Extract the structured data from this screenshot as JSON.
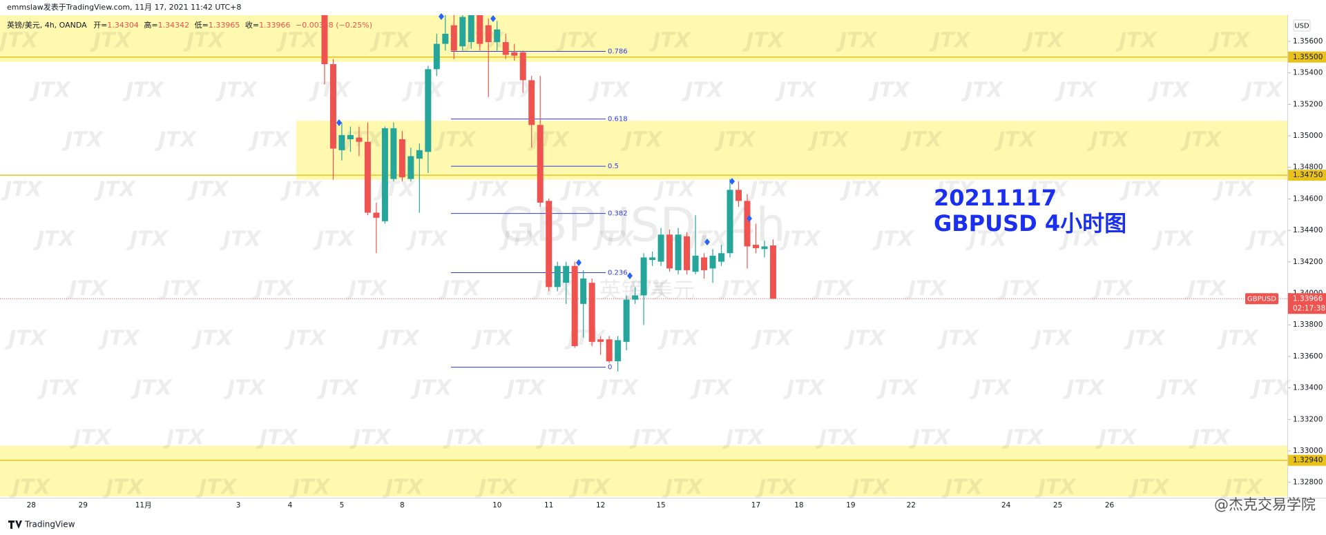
{
  "header": {
    "published": "emmslaw发表于TradingView.com, 11月 17, 2021 11:42 UTC+8",
    "symbol": "英镑/美元, 4h, OANDA",
    "open_label": "开=",
    "high_label": "高=",
    "low_label": "低=",
    "close_label": "收=",
    "change": "−0.00338 (−0.25%)"
  },
  "chart_data": {
    "type": "candlestick",
    "watermark": "GBPUSD, 4h",
    "watermark_sub": "英镑/美元",
    "brand_watermark": "JTX",
    "annotation": [
      "20211117",
      "GBPUSD 4小时图"
    ],
    "currency": "USD",
    "up_color": "#26a69a",
    "down_color": "#ef5350",
    "categories": [
      "28",
      null,
      null,
      null,
      null,
      null,
      "29",
      null,
      null,
      null,
      null,
      null,
      null,
      "11月",
      null,
      null,
      null,
      null,
      null,
      null,
      null,
      null,
      null,
      null,
      "3",
      null,
      null,
      null,
      null,
      null,
      "4",
      null,
      null,
      null,
      null,
      null,
      "5",
      null,
      null,
      null,
      null,
      null,
      null,
      "8",
      null,
      null,
      null,
      null,
      null,
      null,
      null,
      null,
      null,
      null,
      "10",
      null,
      null,
      null,
      null,
      null,
      "11",
      null,
      null,
      null,
      null,
      null,
      "12",
      null,
      null,
      null,
      null,
      null,
      null,
      "15",
      null,
      null,
      null,
      null,
      null,
      null,
      null,
      null,
      null,
      null,
      "17",
      null,
      null,
      null,
      null,
      "18",
      null,
      null,
      null,
      null,
      null,
      "19",
      null,
      null,
      null,
      null,
      null,
      null,
      "22",
      null,
      null,
      null,
      null,
      null,
      null,
      null,
      null,
      null,
      null,
      "24",
      null,
      null,
      null,
      null,
      null,
      "25",
      null,
      null,
      null,
      null,
      null,
      "26",
      null,
      null
    ],
    "open": [
      null,
      null,
      null,
      null,
      null,
      null,
      null,
      null,
      null,
      null,
      null,
      null,
      null,
      null,
      null,
      null,
      null,
      null,
      null,
      null,
      null,
      null,
      null,
      null,
      null,
      null,
      null,
      null,
      null,
      null,
      null,
      null,
      null,
      null,
      1.35766,
      1.35455,
      1.34909,
      1.34978,
      1.34989,
      1.34962,
      1.34512,
      1.34458,
      1.34726,
      1.34978,
      1.34726,
      1.34855,
      1.34898,
      1.35423,
      1.35584,
      1.35702,
      1.35568,
      1.35595,
      1.35766,
      1.35702,
      1.35595,
      1.35595,
      1.3553,
      1.3553,
      1.35353,
      1.35069,
      1.34587,
      1.3404,
      1.34067,
      1.34174,
      1.33933,
      1.34067,
      1.33708,
      1.33708,
      1.33569,
      1.33692,
      1.3396,
      1.33987,
      1.34212,
      1.34201,
      1.34373,
      1.34147,
      1.34362,
      1.34137,
      1.34228,
      1.34158,
      1.34201,
      1.34255,
      1.34657,
      1.34587,
      1.34308,
      1.34281,
      1.34304,
      null,
      null,
      null,
      null,
      null,
      null,
      null,
      null,
      null,
      null,
      null,
      null,
      null,
      null,
      null,
      null,
      null,
      null,
      null,
      null,
      null,
      null,
      null,
      null,
      null,
      null,
      null,
      null,
      null,
      null,
      null,
      null,
      null,
      null,
      null,
      null,
      null,
      null,
      null,
      null,
      null
    ],
    "high": [
      null,
      null,
      null,
      null,
      null,
      null,
      null,
      null,
      null,
      null,
      null,
      null,
      null,
      null,
      null,
      null,
      null,
      null,
      null,
      null,
      null,
      null,
      null,
      null,
      null,
      null,
      null,
      null,
      null,
      null,
      null,
      null,
      null,
      null,
      1.35766,
      1.35487,
      1.35085,
      1.35059,
      1.35059,
      1.35085,
      1.34576,
      1.35059,
      1.35085,
      1.35032,
      1.34925,
      1.34951,
      1.35445,
      1.35648,
      1.35766,
      1.35766,
      1.35766,
      1.35766,
      1.35766,
      1.35745,
      1.35729,
      1.35648,
      1.35584,
      1.35541,
      1.3538,
      1.3538,
      1.34603,
      1.34201,
      1.34201,
      1.34201,
      1.34147,
      1.34094,
      1.33729,
      1.33729,
      1.33729,
      1.33987,
      1.3404,
      1.34255,
      1.34265,
      1.34415,
      1.34405,
      1.34415,
      1.34389,
      1.34496,
      1.34255,
      1.34281,
      1.34308,
      1.34726,
      1.3471,
      1.3463,
      1.34442,
      1.34335,
      1.34342,
      null,
      null,
      null,
      null,
      null,
      null,
      null,
      null,
      null,
      null,
      null,
      null,
      null,
      null,
      null,
      null,
      null,
      null,
      null,
      null,
      null,
      null,
      null,
      null,
      null,
      null,
      null,
      null,
      null,
      null,
      null,
      null,
      null,
      null,
      null,
      null,
      null,
      null,
      null,
      null,
      null
    ],
    "low": [
      null,
      null,
      null,
      null,
      null,
      null,
      null,
      null,
      null,
      null,
      null,
      null,
      null,
      null,
      null,
      null,
      null,
      null,
      null,
      null,
      null,
      null,
      null,
      null,
      null,
      null,
      null,
      null,
      null,
      null,
      null,
      null,
      null,
      null,
      1.35327,
      1.34721,
      1.34844,
      1.34898,
      1.34871,
      1.34496,
      1.34255,
      1.34442,
      1.3471,
      1.3471,
      1.3471,
      1.34512,
      1.34764,
      1.3538,
      1.35541,
      1.35487,
      1.35541,
      1.35552,
      1.35541,
      1.35246,
      1.35541,
      1.35487,
      1.35477,
      1.35273,
      1.34925,
      1.34549,
      1.34013,
      1.34013,
      1.33933,
      1.33654,
      1.33719,
      1.33665,
      1.33611,
      1.33558,
      1.33504,
      1.33638,
      1.33933,
      1.33799,
      1.34174,
      1.34174,
      1.34137,
      1.34121,
      1.34121,
      1.34121,
      1.34094,
      1.34067,
      1.34174,
      1.34228,
      1.34549,
      1.34158,
      1.34255,
      1.34228,
      1.33965,
      null,
      null,
      null,
      null,
      null,
      null,
      null,
      null,
      null,
      null,
      null,
      null,
      null,
      null,
      null,
      null,
      null,
      null,
      null,
      null,
      null,
      null,
      null,
      null,
      null,
      null,
      null,
      null,
      null,
      null,
      null,
      null,
      null,
      null,
      null,
      null,
      null,
      null,
      null,
      null,
      null
    ],
    "close": [
      null,
      null,
      null,
      null,
      null,
      null,
      null,
      null,
      null,
      null,
      null,
      null,
      null,
      null,
      null,
      null,
      null,
      null,
      null,
      null,
      null,
      null,
      null,
      null,
      null,
      null,
      null,
      null,
      null,
      null,
      null,
      null,
      null,
      null,
      1.35455,
      1.34919,
      1.35005,
      1.35005,
      1.34962,
      1.34512,
      1.3448,
      1.35048,
      1.35048,
      1.34737,
      1.34871,
      1.34909,
      1.35423,
      1.35584,
      1.35648,
      1.35541,
      1.35755,
      1.35766,
      1.35584,
      1.35595,
      1.35675,
      1.35514,
      1.35509,
      1.35353,
      1.35069,
      1.34576,
      1.3404,
      1.34174,
      1.34174,
      1.33665,
      1.34094,
      1.33692,
      1.33692,
      1.33569,
      1.33703,
      1.3396,
      1.33987,
      1.34228,
      1.34228,
      1.34373,
      1.34158,
      1.34373,
      1.34147,
      1.34239,
      1.34147,
      1.34239,
      1.34255,
      1.34657,
      1.34587,
      1.34298,
      1.34287,
      1.34298,
      1.33966,
      null,
      null,
      null,
      null,
      null,
      null,
      null,
      null,
      null,
      null,
      null,
      null,
      null,
      null,
      null,
      null,
      null,
      null,
      null,
      null,
      null,
      null,
      null,
      null,
      null,
      null,
      null,
      null,
      null,
      null,
      null,
      null,
      null,
      null,
      null,
      null,
      null,
      null,
      null,
      null,
      null
    ],
    "ylim": [
      1.32711,
      1.35766
    ],
    "yticks": [
      {
        "value": 1.356,
        "label": "1.35600"
      },
      {
        "value": 1.354,
        "label": "1.35400"
      },
      {
        "value": 1.352,
        "label": "1.35200"
      },
      {
        "value": 1.35,
        "label": "1.35000"
      },
      {
        "value": 1.348,
        "label": "1.34800"
      },
      {
        "value": 1.346,
        "label": "1.34600"
      },
      {
        "value": 1.344,
        "label": "1.34400"
      },
      {
        "value": 1.342,
        "label": "1.34200"
      },
      {
        "value": 1.34,
        "label": "1.34000"
      },
      {
        "value": 1.338,
        "label": "1.33800"
      },
      {
        "value": 1.336,
        "label": "1.33600"
      },
      {
        "value": 1.334,
        "label": "1.33400"
      },
      {
        "value": 1.332,
        "label": "1.33200"
      },
      {
        "value": 1.33,
        "label": "1.33000"
      },
      {
        "value": 1.328,
        "label": "1.32800"
      }
    ],
    "zones": [
      {
        "top": 1.35766,
        "bottom": 1.3547
      },
      {
        "top": 1.35096,
        "bottom": 1.34721
      },
      {
        "top": 1.33033,
        "bottom": 1.32711
      }
    ],
    "zone_color": "#fff9b0",
    "levels": [
      {
        "value": 1.355,
        "label": "1.35500"
      },
      {
        "value": 1.3475,
        "label": "1.34750"
      },
      {
        "value": 1.3294,
        "label": "1.32940"
      }
    ],
    "level_color": "#e8c21a",
    "fib_levels": [
      {
        "ratio": 0.786,
        "price": 1.35536
      },
      {
        "ratio": 0.618,
        "price": 1.35107
      },
      {
        "ratio": 0.5,
        "price": 1.34807
      },
      {
        "ratio": 0.382,
        "price": 1.34507
      },
      {
        "ratio": 0.236,
        "price": 1.34131
      },
      {
        "ratio": 0,
        "price": 1.33531
      }
    ],
    "fib_color": "#2b38e8",
    "last_price": {
      "symbol": "GBPUSD",
      "countdown": "02:17:38"
    }
  },
  "footer": {
    "brand": "TradingView",
    "credit": "@杰克交易学院"
  }
}
